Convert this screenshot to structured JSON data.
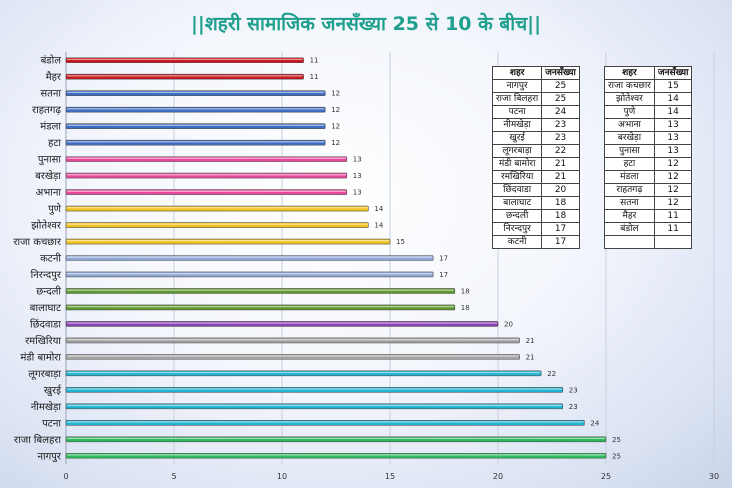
{
  "title": "||शहरी सामाजिक जनसँख्या 25 से 10 के बीच||",
  "chart_data": {
    "type": "bar",
    "orientation": "horizontal",
    "xlim": [
      0,
      30
    ],
    "xticks": [
      0,
      5,
      10,
      15,
      20,
      25,
      30
    ],
    "grid": true,
    "categories": [
      "बंडोल",
      "मैहर",
      "सतना",
      "राहतगढ़",
      "मंडला",
      "हटा",
      "पुनासा",
      "बरखेड़ा",
      "अभाना",
      "पुणे",
      "झोतेश्वर",
      "राजा कचछार",
      "कटनी",
      "निरन्दपुर",
      "छन्दली",
      "बालाघाट",
      "छिंदवाडा",
      "रमखिरिया",
      "मंडी बामोरा",
      "लूगरबाड़ा",
      "खुरई",
      "नीमखेड़ा",
      "पटना",
      "राजा बिलहरा",
      "नागपुर"
    ],
    "values": [
      11,
      11,
      12,
      12,
      12,
      12,
      13,
      13,
      13,
      14,
      14,
      15,
      17,
      17,
      18,
      18,
      20,
      21,
      21,
      22,
      23,
      23,
      24,
      25,
      25
    ],
    "colors": [
      "#c8151b",
      "#c8151b",
      "#3d6cc4",
      "#3d6cc4",
      "#3d6cc4",
      "#3d6cc4",
      "#e8489a",
      "#e8489a",
      "#e8489a",
      "#f2c21a",
      "#f2c21a",
      "#f2c21a",
      "#8fa7d6",
      "#8fa7d6",
      "#5f9a2e",
      "#5f9a2e",
      "#8a3fb5",
      "#a3a3a3",
      "#a3a3a3",
      "#1fb3d1",
      "#1fb3d1",
      "#1fb3d1",
      "#1fb3d1",
      "#2bb85a",
      "#2bb85a"
    ]
  },
  "table_left": {
    "headers": [
      "शहर",
      "जनसँख्या"
    ],
    "rows": [
      [
        "नागपुर",
        "25"
      ],
      [
        "राजा बिलहरा",
        "25"
      ],
      [
        "पटना",
        "24"
      ],
      [
        "नीमखेड़ा",
        "23"
      ],
      [
        "खुरई",
        "23"
      ],
      [
        "लूगरबाड़ा",
        "22"
      ],
      [
        "मंडी बामोरा",
        "21"
      ],
      [
        "रमखिरिया",
        "21"
      ],
      [
        "छिंदवाडा",
        "20"
      ],
      [
        "बालाघाट",
        "18"
      ],
      [
        "छन्दली",
        "18"
      ],
      [
        "निरन्दपुर",
        "17"
      ],
      [
        "कटनी",
        "17"
      ]
    ]
  },
  "table_right": {
    "headers": [
      "शहर",
      "जनसँख्या"
    ],
    "rows": [
      [
        "राजा कचछार",
        "15"
      ],
      [
        "झोतेश्वर",
        "14"
      ],
      [
        "पुणे",
        "14"
      ],
      [
        "अभाना",
        "13"
      ],
      [
        "बरखेड़ा",
        "13"
      ],
      [
        "पुनासा",
        "13"
      ],
      [
        "हटा",
        "12"
      ],
      [
        "मंडला",
        "12"
      ],
      [
        "राहतगढ़",
        "12"
      ],
      [
        "सतना",
        "12"
      ],
      [
        "मैहर",
        "11"
      ],
      [
        "बंडोल",
        "11"
      ],
      [
        "",
        ""
      ]
    ]
  }
}
